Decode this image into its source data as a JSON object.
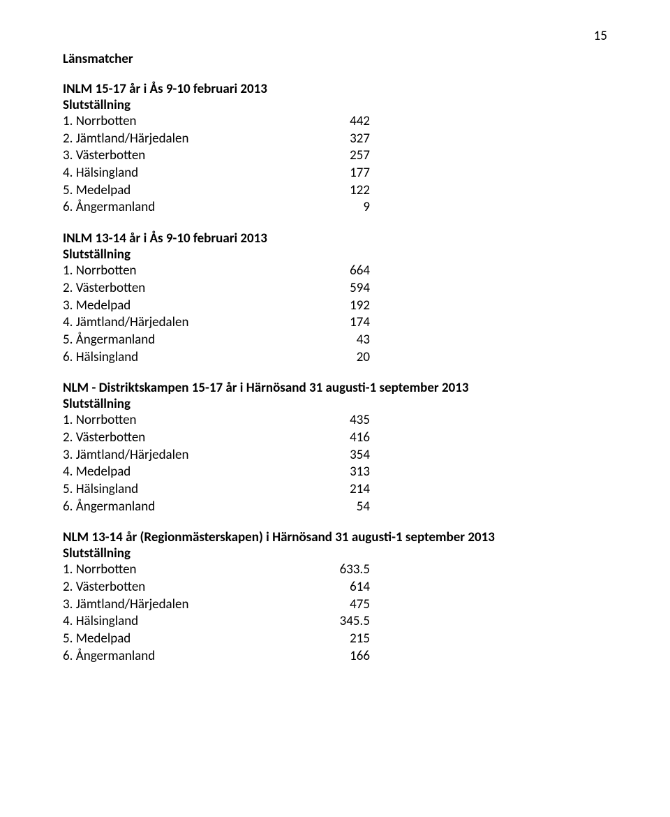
{
  "pageNumber": "15",
  "title": "Länsmatcher",
  "sections": [
    {
      "heading": "INLM 15-17 år i Ås 9-10 februari 2013",
      "sub": "Slutställning",
      "rows": [
        {
          "label": "1. Norrbotten",
          "value": "442"
        },
        {
          "label": "2. Jämtland/Härjedalen",
          "value": "327"
        },
        {
          "label": "3. Västerbotten",
          "value": "257"
        },
        {
          "label": "4. Hälsingland",
          "value": "177"
        },
        {
          "label": "5. Medelpad",
          "value": "122"
        },
        {
          "label": "6. Ångermanland",
          "value": "9"
        }
      ]
    },
    {
      "heading": "INLM 13-14 år i Ås 9-10 februari 2013",
      "sub": "Slutställning",
      "rows": [
        {
          "label": "1. Norrbotten",
          "value": "664"
        },
        {
          "label": "2. Västerbotten",
          "value": "594"
        },
        {
          "label": "3. Medelpad",
          "value": "192"
        },
        {
          "label": "4. Jämtland/Härjedalen",
          "value": "174"
        },
        {
          "label": "5. Ångermanland",
          "value": "43"
        },
        {
          "label": "6. Hälsingland",
          "value": "20"
        }
      ]
    },
    {
      "heading": "NLM - Distriktskampen 15-17 år i Härnösand 31 augusti-1 september 2013",
      "sub": "Slutställning",
      "rows": [
        {
          "label": "1. Norrbotten",
          "value": "435"
        },
        {
          "label": "2. Västerbotten",
          "value": "416"
        },
        {
          "label": "3. Jämtland/Härjedalen",
          "value": "354"
        },
        {
          "label": "4. Medelpad",
          "value": "313"
        },
        {
          "label": "5. Hälsingland",
          "value": "214"
        },
        {
          "label": "6. Ångermanland",
          "value": "54"
        }
      ]
    },
    {
      "heading": "NLM 13-14 år (Regionmästerskapen) i Härnösand 31 augusti-1 september 2013",
      "sub": "Slutställning",
      "rows": [
        {
          "label": "1. Norrbotten",
          "value": "633.5"
        },
        {
          "label": "2. Västerbotten",
          "value": "614"
        },
        {
          "label": "3. Jämtland/Härjedalen",
          "value": "475"
        },
        {
          "label": "4. Hälsingland",
          "value": "345.5"
        },
        {
          "label": "5. Medelpad",
          "value": "215"
        },
        {
          "label": "6. Ångermanland",
          "value": "166"
        }
      ]
    }
  ]
}
